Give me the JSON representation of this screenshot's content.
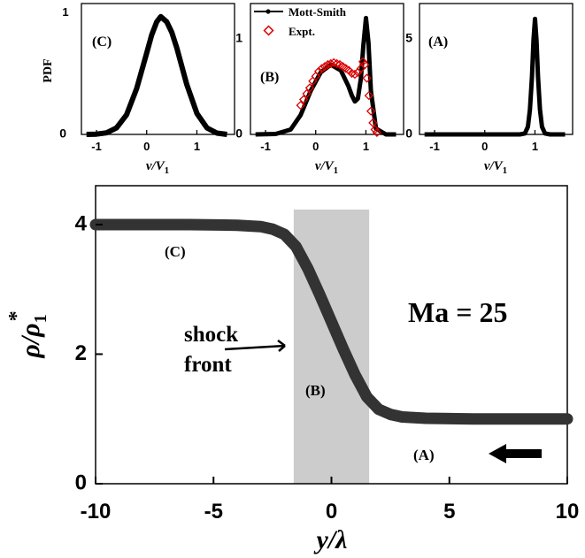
{
  "chart_data": [
    {
      "type": "line",
      "panel_label": "(C)",
      "ylabel": "PDF",
      "xlabel": "v/V1",
      "xlim": [
        -1.3,
        1.75
      ],
      "ylim": [
        0,
        1.0
      ],
      "xticks": [
        -1,
        0,
        1
      ],
      "yticks": [
        0
      ],
      "ytick_labels": [
        "0"
      ],
      "series": [
        {
          "x": [
            -1.2,
            -1.0,
            -0.8,
            -0.6,
            -0.4,
            -0.2,
            0.0,
            0.1,
            0.2,
            0.28,
            0.4,
            0.5,
            0.6,
            0.8,
            1.0,
            1.2,
            1.4,
            1.6
          ],
          "y": [
            0.0,
            0.002,
            0.012,
            0.05,
            0.15,
            0.35,
            0.62,
            0.76,
            0.86,
            0.9,
            0.86,
            0.78,
            0.66,
            0.38,
            0.16,
            0.05,
            0.01,
            0.0
          ]
        }
      ]
    },
    {
      "type": "line",
      "panel_label": "(B)",
      "xlabel": "v/V1",
      "xlim": [
        -1.3,
        1.75
      ],
      "ylim": [
        0,
        1.35
      ],
      "xticks": [
        -1,
        0,
        1
      ],
      "yticks": [
        0,
        1
      ],
      "ytick_labels": [
        "0",
        "1"
      ],
      "legend": [
        "Mott-Smith",
        "Expt."
      ],
      "series": [
        {
          "name": "Mott-Smith",
          "x": [
            -1.2,
            -0.8,
            -0.5,
            -0.3,
            -0.1,
            0.1,
            0.3,
            0.5,
            0.65,
            0.72,
            0.78,
            0.84,
            0.9,
            0.95,
            1.0,
            1.05,
            1.1,
            1.2,
            1.4,
            1.6
          ],
          "y": [
            0.0,
            0.005,
            0.05,
            0.2,
            0.45,
            0.64,
            0.72,
            0.66,
            0.5,
            0.4,
            0.34,
            0.37,
            0.58,
            0.92,
            1.2,
            0.95,
            0.45,
            0.06,
            0.0,
            0.0
          ]
        },
        {
          "name": "Expt.",
          "x": [
            -0.3,
            -0.24,
            -0.18,
            -0.12,
            -0.06,
            0.0,
            0.06,
            0.12,
            0.18,
            0.24,
            0.3,
            0.36,
            0.42,
            0.48,
            0.54,
            0.6,
            0.66,
            0.72,
            0.78,
            0.84,
            0.9,
            0.94,
            0.98,
            1.02,
            1.06,
            1.1,
            1.14,
            1.18,
            1.22
          ],
          "y": [
            0.3,
            0.36,
            0.42,
            0.48,
            0.55,
            0.6,
            0.65,
            0.68,
            0.7,
            0.72,
            0.73,
            0.74,
            0.73,
            0.72,
            0.7,
            0.68,
            0.66,
            0.63,
            0.62,
            0.64,
            0.68,
            0.75,
            0.72,
            0.58,
            0.4,
            0.24,
            0.12,
            0.05,
            0.02
          ]
        }
      ]
    },
    {
      "type": "line",
      "panel_label": "(A)",
      "xlabel": "v/V1",
      "xlim": [
        -1.3,
        1.75
      ],
      "ylim": [
        0,
        6.8
      ],
      "xticks": [
        -1,
        0,
        1
      ],
      "yticks": [
        0,
        5
      ],
      "ytick_labels": [
        "0",
        "5"
      ],
      "series": [
        {
          "x": [
            -1.2,
            0.7,
            0.8,
            0.86,
            0.9,
            0.94,
            0.97,
            1.0,
            1.03,
            1.06,
            1.1,
            1.14,
            1.2,
            1.3,
            1.6
          ],
          "y": [
            0.0,
            0.0,
            0.05,
            0.4,
            1.3,
            3.0,
            4.9,
            6.0,
            4.9,
            3.0,
            1.3,
            0.4,
            0.05,
            0.0,
            0.0
          ]
        }
      ]
    },
    {
      "type": "line",
      "xlabel": "y/λ",
      "ylabel": "ρ/ρ1*",
      "xlim": [
        -10,
        10
      ],
      "ylim": [
        0,
        4.6
      ],
      "xticks": [
        -10,
        -5,
        0,
        5,
        10
      ],
      "yticks": [
        0,
        2,
        4
      ],
      "shaded_region": [
        -1.6,
        1.6
      ],
      "series": [
        {
          "x": [
            -10,
            -6,
            -4,
            -3,
            -2.5,
            -2,
            -1.5,
            -1,
            -0.5,
            0,
            0.5,
            1,
            1.5,
            2,
            2.5,
            3,
            4,
            6,
            10
          ],
          "y": [
            4.0,
            4.0,
            3.99,
            3.97,
            3.93,
            3.85,
            3.66,
            3.32,
            2.92,
            2.5,
            2.08,
            1.68,
            1.34,
            1.15,
            1.07,
            1.03,
            1.01,
            1.0,
            1.0
          ]
        }
      ],
      "annotations": [
        "(C)",
        "(B)",
        "(A)",
        "Ma = 25",
        "shock",
        "front"
      ]
    }
  ],
  "text": {
    "pdf_label": "PDF",
    "panel_c": "(C)",
    "panel_b": "(B)",
    "panel_a": "(A)",
    "legend_line": "Mott-Smith",
    "legend_expt": "Expt.",
    "xlabel_v": "v/V",
    "xlabel_sub": "1",
    "main_c": "(C)",
    "main_b": "(B)",
    "main_a": "(A)",
    "mach": "Ma = 25",
    "shock": "shock",
    "front": "front",
    "ylabel_rho": "ρ/ρ",
    "ylabel_sub": "1",
    "ylabel_star": "*",
    "xlabel_main": "y/λ"
  },
  "colors": {
    "line": "#000000",
    "main_line": "#333333",
    "expt": "#dd0000",
    "shade": "#cccccc"
  }
}
